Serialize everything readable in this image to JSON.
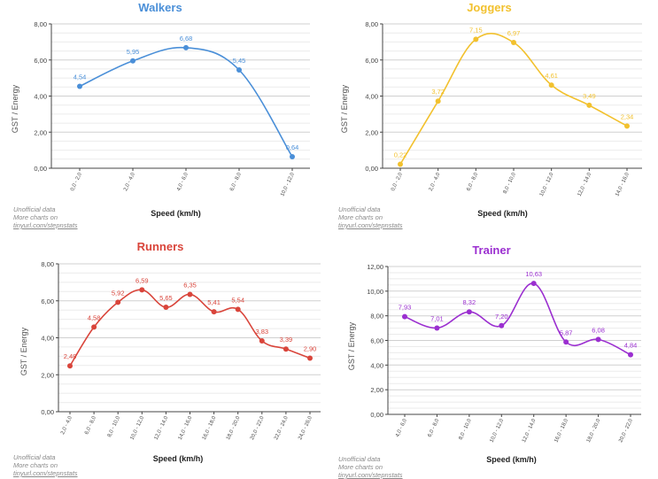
{
  "chart_data": [
    {
      "type": "line",
      "title": "Walkers",
      "color": "#4a8fd8",
      "xlabel": "Speed (km/h)",
      "ylabel": "GST / Energy",
      "ylim": [
        0,
        8
      ],
      "yticks": [
        "0,00",
        "2,00",
        "4,00",
        "6,00",
        "8,00"
      ],
      "categories": [
        "0,0 - 2,0",
        "2,0 - 4,0",
        "4,0 - 6,0",
        "6,0 - 8,0",
        "10,0 - 12,0"
      ],
      "values": [
        4.54,
        5.95,
        6.68,
        5.45,
        0.64
      ],
      "value_labels": [
        "4,54",
        "5,95",
        "6,68",
        "5,45",
        "0,64"
      ],
      "notes": [
        "Unofficial data",
        "More charts on",
        "tinyurl.com/stepnstats"
      ]
    },
    {
      "type": "line",
      "title": "Joggers",
      "color": "#f2c12e",
      "xlabel": "Speed (km/h)",
      "ylabel": "GST / Energy",
      "ylim": [
        0,
        8
      ],
      "yticks": [
        "0,00",
        "2,00",
        "4,00",
        "6,00",
        "8,00"
      ],
      "categories": [
        "0,0 - 2,0",
        "2,0 - 4,0",
        "6,0 - 8,0",
        "8,0 - 10,0",
        "10,0 - 12,0",
        "12,0 - 14,0",
        "14,0 - 16,0"
      ],
      "values": [
        0.22,
        3.72,
        7.15,
        6.97,
        4.61,
        3.49,
        2.34
      ],
      "value_labels": [
        "0,22",
        "3,72",
        "7,15",
        "6,97",
        "4,61",
        "3,49",
        "2,34"
      ],
      "notes": [
        "Unofficial data",
        "More charts on",
        "tinyurl.com/stepnstats"
      ]
    },
    {
      "type": "line",
      "title": "Runners",
      "color": "#d9453b",
      "xlabel": "Speed (km/h)",
      "ylabel": "GST / Energy",
      "ylim": [
        0,
        8
      ],
      "yticks": [
        "0,00",
        "2,00",
        "4,00",
        "6,00",
        "8,00"
      ],
      "categories": [
        "2,0 - 4,0",
        "6,0 - 8,0",
        "8,0 - 10,0",
        "10,0 - 12,0",
        "12,0 - 14,0",
        "14,0 - 16,0",
        "16,0 - 18,0",
        "18,0 - 20,0",
        "20,0 - 22,0",
        "22,0 - 24,0",
        "24,0 - 26,0"
      ],
      "values": [
        2.48,
        4.58,
        5.92,
        6.59,
        5.65,
        6.35,
        5.41,
        5.54,
        3.83,
        3.39,
        2.9
      ],
      "value_labels": [
        "2,48",
        "4,58",
        "5,92",
        "6,59",
        "5,65",
        "6,35",
        "5,41",
        "5,54",
        "3,83",
        "3,39",
        "2,90"
      ],
      "notes": [
        "Unofficial data",
        "More charts on",
        "tinyurl.com/stepnstats"
      ]
    },
    {
      "type": "line",
      "title": "Trainer",
      "color": "#9b2fd0",
      "xlabel": "Speed (km/h)",
      "ylabel": "GST / Energy",
      "ylim": [
        0,
        12
      ],
      "yticks": [
        "0,00",
        "2,00",
        "4,00",
        "6,00",
        "8,00",
        "10,00",
        "12,00"
      ],
      "categories": [
        "4,0 - 6,0",
        "6,0 - 8,0",
        "8,0 - 10,0",
        "10,0 - 12,0",
        "12,0 - 14,0",
        "16,0 - 18,0",
        "18,0 - 20,0",
        "20,0 - 22,0"
      ],
      "values": [
        7.93,
        7.01,
        8.32,
        7.2,
        10.63,
        5.87,
        6.08,
        4.84
      ],
      "value_labels": [
        "7,93",
        "7,01",
        "8,32",
        "7,20",
        "10,63",
        "5,87",
        "6,08",
        "4,84"
      ],
      "notes": [
        "Unofficial data",
        "More charts on",
        "tinyurl.com/stepnstats"
      ]
    }
  ]
}
